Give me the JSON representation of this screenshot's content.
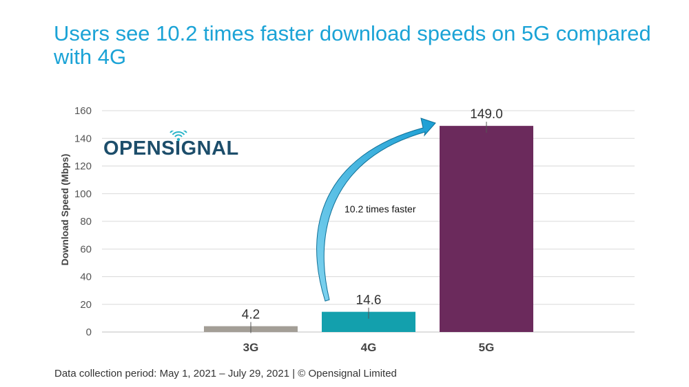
{
  "title": "Users see 10.2 times faster download speeds on 5G compared with 4G",
  "footer": "Data collection period: May 1, 2021 – July 29, 2021 | © Opensignal Limited",
  "logo": {
    "text_before": "OPENS",
    "text_i": "I",
    "text_after": "GNAL",
    "color": "#1d4e6b",
    "signal_color": "#2bb5c9"
  },
  "annotation": "10.2 times faster",
  "chart_data": {
    "type": "bar",
    "categories": [
      "3G",
      "4G",
      "5G"
    ],
    "values": [
      4.2,
      14.6,
      149.0
    ],
    "value_labels": [
      "4.2",
      "14.6",
      "149.0"
    ],
    "colors": [
      "#a39e96",
      "#13a0ad",
      "#6b2a5c"
    ],
    "ylabel": "Download Speed (Mbps)",
    "ylim": [
      0,
      160
    ],
    "yticks": [
      0,
      20,
      40,
      60,
      80,
      100,
      120,
      140,
      160
    ],
    "grid": true,
    "arrow_color": "#1a9ed4"
  }
}
